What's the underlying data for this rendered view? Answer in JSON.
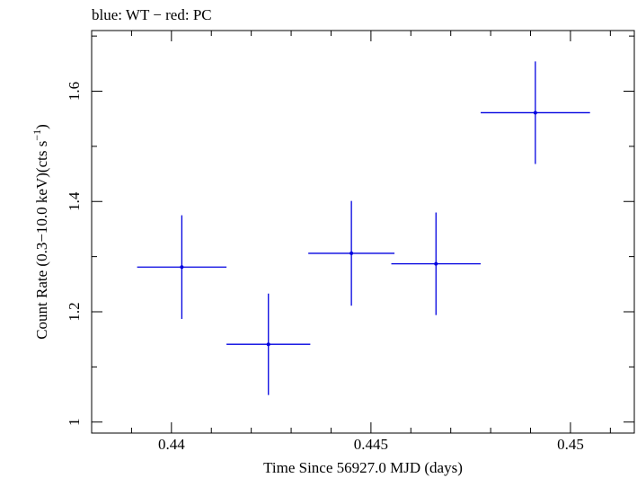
{
  "chart_data": {
    "type": "scatter",
    "title": "blue: WT − red: PC",
    "xlabel": "Time Since 56927.0 MJD (days)",
    "ylabel_main": "Count Rate (0.3−10.0 keV)(cts s",
    "ylabel_sup": "−1",
    "ylabel_end": ")",
    "xlim": [
      0.438,
      0.4516
    ],
    "ylim": [
      0.98,
      1.71
    ],
    "x_ticks": [
      0.44,
      0.445,
      0.45
    ],
    "x_tick_labels": [
      "0.44",
      "0.445",
      "0.45"
    ],
    "y_ticks": [
      1.0,
      1.2,
      1.4,
      1.6
    ],
    "y_tick_labels": [
      "1",
      "1.2",
      "1.4",
      "1.6"
    ],
    "grid": false,
    "series": [
      {
        "color": "#0000e0",
        "points": [
          {
            "x": 0.44026,
            "y": 1.281,
            "xerr": 0.00112,
            "yerr": 0.094
          },
          {
            "x": 0.44243,
            "y": 1.141,
            "xerr": 0.00105,
            "yerr": 0.092
          },
          {
            "x": 0.44451,
            "y": 1.306,
            "xerr": 0.00108,
            "yerr": 0.095
          },
          {
            "x": 0.44663,
            "y": 1.287,
            "xerr": 0.00112,
            "yerr": 0.093
          },
          {
            "x": 0.44912,
            "y": 1.561,
            "xerr": 0.00137,
            "yerr": 0.093
          }
        ]
      }
    ]
  }
}
